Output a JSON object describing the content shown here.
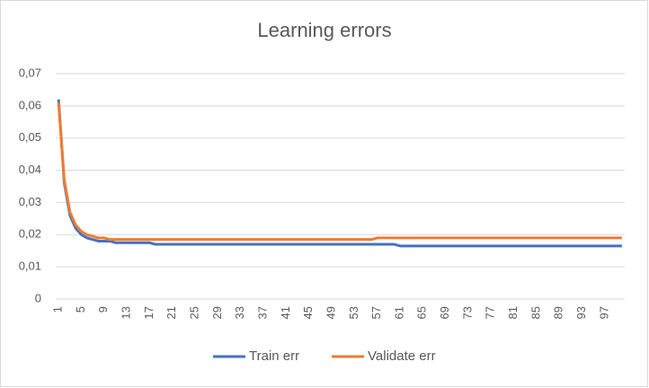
{
  "chart_data": {
    "type": "line",
    "title": "Learning errors",
    "categories": [
      "1",
      null,
      null,
      null,
      "5",
      null,
      null,
      null,
      "9",
      null,
      null,
      null,
      "13",
      null,
      null,
      null,
      "17",
      null,
      null,
      null,
      "21",
      null,
      null,
      null,
      "25",
      null,
      null,
      null,
      "29",
      null,
      null,
      null,
      "33",
      null,
      null,
      null,
      "37",
      null,
      null,
      null,
      "41",
      null,
      null,
      null,
      "45",
      null,
      null,
      null,
      "49",
      null,
      null,
      null,
      "53",
      null,
      null,
      null,
      "57",
      null,
      null,
      null,
      "61",
      null,
      null,
      null,
      "65",
      null,
      null,
      null,
      "69",
      null,
      null,
      null,
      "73",
      null,
      null,
      null,
      "77",
      null,
      null,
      null,
      "81",
      null,
      null,
      null,
      "85",
      null,
      null,
      null,
      "89",
      null,
      null,
      null,
      "93",
      null,
      null,
      null,
      "97",
      null,
      null,
      null
    ],
    "series": [
      {
        "name": "Train err",
        "color": "#4472c4",
        "values": [
          0.062,
          0.036,
          0.026,
          0.022,
          0.02,
          0.019,
          0.0185,
          0.018,
          0.018,
          0.018,
          0.0175,
          0.0175,
          0.0175,
          0.0175,
          0.0175,
          0.0175,
          0.0175,
          0.017,
          0.017,
          0.017,
          0.017,
          0.017,
          0.017,
          0.017,
          0.017,
          0.017,
          0.017,
          0.017,
          0.017,
          0.017,
          0.017,
          0.017,
          0.017,
          0.017,
          0.017,
          0.017,
          0.017,
          0.017,
          0.017,
          0.017,
          0.017,
          0.017,
          0.017,
          0.017,
          0.017,
          0.017,
          0.017,
          0.017,
          0.017,
          0.017,
          0.017,
          0.017,
          0.017,
          0.017,
          0.017,
          0.017,
          0.017,
          0.017,
          0.017,
          0.017,
          0.0165,
          0.0165,
          0.0165,
          0.0165,
          0.0165,
          0.0165,
          0.0165,
          0.0165,
          0.0165,
          0.0165,
          0.0165,
          0.0165,
          0.0165,
          0.0165,
          0.0165,
          0.0165,
          0.0165,
          0.0165,
          0.0165,
          0.0165,
          0.0165,
          0.0165,
          0.0165,
          0.0165,
          0.0165,
          0.0165,
          0.0165,
          0.0165,
          0.0165,
          0.0165,
          0.0165,
          0.0165,
          0.0165,
          0.0165,
          0.0165,
          0.0165,
          0.0165,
          0.0165,
          0.0165,
          0.0165
        ]
      },
      {
        "name": "Validate err",
        "color": "#ed7d31",
        "values": [
          0.061,
          0.037,
          0.027,
          0.023,
          0.021,
          0.02,
          0.0195,
          0.019,
          0.019,
          0.0185,
          0.0185,
          0.0185,
          0.0185,
          0.0185,
          0.0185,
          0.0185,
          0.0185,
          0.0185,
          0.0185,
          0.0185,
          0.0185,
          0.0185,
          0.0185,
          0.0185,
          0.0185,
          0.0185,
          0.0185,
          0.0185,
          0.0185,
          0.0185,
          0.0185,
          0.0185,
          0.0185,
          0.0185,
          0.0185,
          0.0185,
          0.0185,
          0.0185,
          0.0185,
          0.0185,
          0.0185,
          0.0185,
          0.0185,
          0.0185,
          0.0185,
          0.0185,
          0.0185,
          0.0185,
          0.0185,
          0.0185,
          0.0185,
          0.0185,
          0.0185,
          0.0185,
          0.0185,
          0.0185,
          0.019,
          0.019,
          0.019,
          0.019,
          0.019,
          0.019,
          0.019,
          0.019,
          0.019,
          0.019,
          0.019,
          0.019,
          0.019,
          0.019,
          0.019,
          0.019,
          0.019,
          0.019,
          0.019,
          0.019,
          0.019,
          0.019,
          0.019,
          0.019,
          0.019,
          0.019,
          0.019,
          0.019,
          0.019,
          0.019,
          0.019,
          0.019,
          0.019,
          0.019,
          0.019,
          0.019,
          0.019,
          0.019,
          0.019,
          0.019,
          0.019,
          0.019,
          0.019,
          0.019
        ]
      }
    ],
    "ylim": [
      0,
      0.07
    ],
    "yticks": [
      0,
      {
        "value": 0.01,
        "label": "0,01"
      },
      {
        "value": 0.02,
        "label": "0,02"
      },
      {
        "value": 0.03,
        "label": "0,03"
      },
      {
        "value": 0.04,
        "label": "0,04"
      },
      {
        "value": 0.05,
        "label": "0,05"
      },
      {
        "value": 0.06,
        "label": "0,06"
      },
      {
        "value": 0.07,
        "label": "0,07"
      }
    ],
    "grid": true,
    "legend": "bottom"
  }
}
